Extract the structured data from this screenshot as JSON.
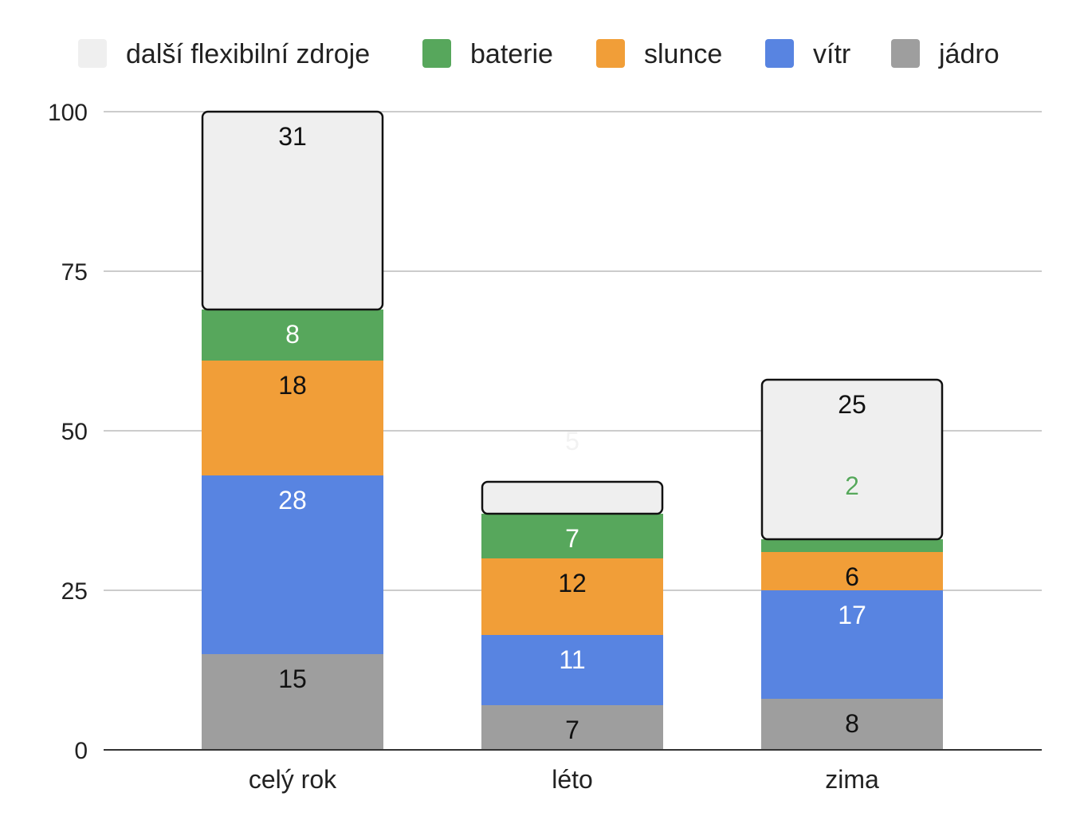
{
  "chart_data": {
    "type": "bar",
    "stacked": true,
    "categories": [
      "celý rok",
      "léto",
      "zima"
    ],
    "ylim": [
      0,
      100
    ],
    "yticks": [
      0,
      25,
      50,
      75,
      100
    ],
    "grid": true,
    "legend_position": "top",
    "series": [
      {
        "name": "jádro",
        "values": [
          15,
          7,
          8
        ],
        "labels": [
          "15",
          "7",
          "8"
        ],
        "color": "#9e9e9e",
        "label_color": "#111111"
      },
      {
        "name": "vítr",
        "values": [
          28,
          11,
          17
        ],
        "labels": [
          "28",
          "11",
          "17"
        ],
        "color": "#5884e1",
        "label_color": "#ffffff"
      },
      {
        "name": "slunce",
        "values": [
          18,
          12,
          6
        ],
        "labels": [
          "18",
          "12",
          "6"
        ],
        "color": "#f19e38",
        "label_color": "#111111"
      },
      {
        "name": "baterie",
        "values": [
          8,
          7,
          2
        ],
        "labels": [
          "8",
          "7",
          "2"
        ],
        "color": "#57a75c",
        "label_color": "#ffffff"
      },
      {
        "name": "další flexibilní zdroje",
        "values": [
          31,
          5,
          25
        ],
        "labels": [
          "31",
          "5",
          "25"
        ],
        "color": "#efefef",
        "label_color": "#111111"
      }
    ],
    "legend_order": [
      "další flexibilní zdroje",
      "baterie",
      "slunce",
      "vítr",
      "jádro"
    ]
  }
}
